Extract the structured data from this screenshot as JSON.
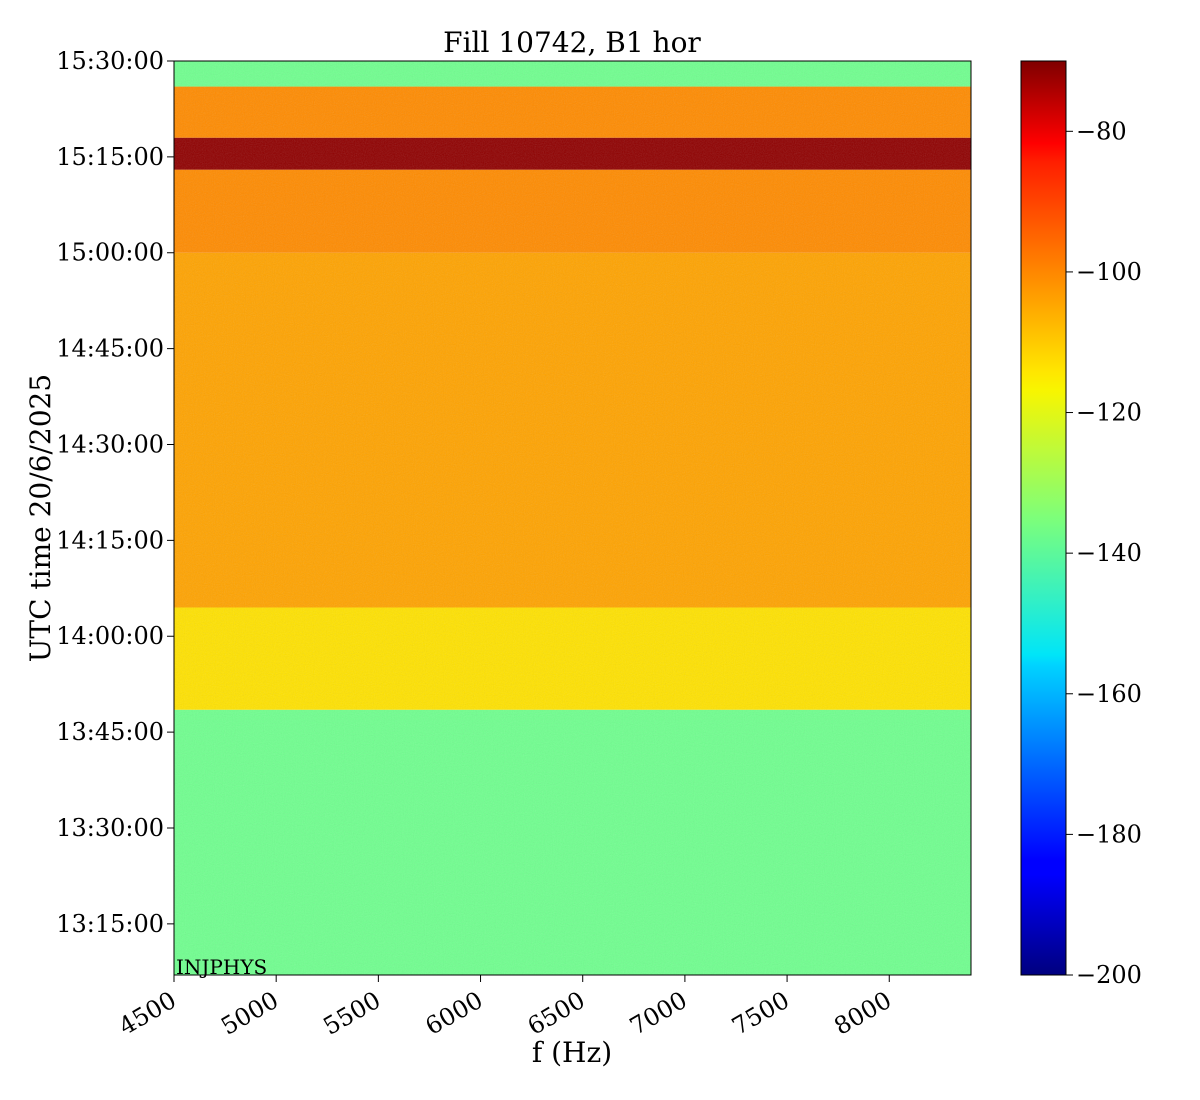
{
  "chart_data": {
    "type": "heatmap",
    "title": "Fill 10742, B1 hor",
    "xlabel": "f (Hz)",
    "ylabel": "UTC time 20/6/2025",
    "annotation": "INJPHYS",
    "xlim": [
      4500,
      8400
    ],
    "x_ticks": [
      4500,
      5000,
      5500,
      6000,
      6500,
      7000,
      7500,
      8000
    ],
    "x_tick_labels": [
      "4500",
      "5000",
      "5500",
      "6000",
      "6500",
      "7000",
      "7500",
      "8000"
    ],
    "y_range": [
      "13:07:00",
      "15:30:00"
    ],
    "y_ticks": [
      "13:15:00",
      "13:30:00",
      "13:45:00",
      "14:00:00",
      "14:15:00",
      "14:30:00",
      "14:45:00",
      "15:00:00",
      "15:15:00",
      "15:30:00"
    ],
    "colorbar": {
      "colormap": "jet",
      "vmin": -200,
      "vmax": -70,
      "ticks": [
        -80,
        -100,
        -120,
        -140,
        -160,
        -180,
        -200
      ],
      "tick_labels": [
        "−80",
        "−100",
        "−120",
        "−140",
        "−160",
        "−180",
        "−200"
      ]
    },
    "time_bands": [
      {
        "from": "13:07:00",
        "to": "13:48:30",
        "level_db": -137
      },
      {
        "from": "13:48:30",
        "to": "14:04:30",
        "level_db": -115
      },
      {
        "from": "14:04:30",
        "to": "15:00:00",
        "level_db": -107
      },
      {
        "from": "15:00:00",
        "to": "15:13:00",
        "level_db": -104
      },
      {
        "from": "15:13:00",
        "to": "15:18:00",
        "level_db": -72
      },
      {
        "from": "15:18:00",
        "to": "15:26:00",
        "level_db": -104
      },
      {
        "from": "15:26:00",
        "to": "15:30:00",
        "level_db": -137
      }
    ],
    "grid": false
  }
}
